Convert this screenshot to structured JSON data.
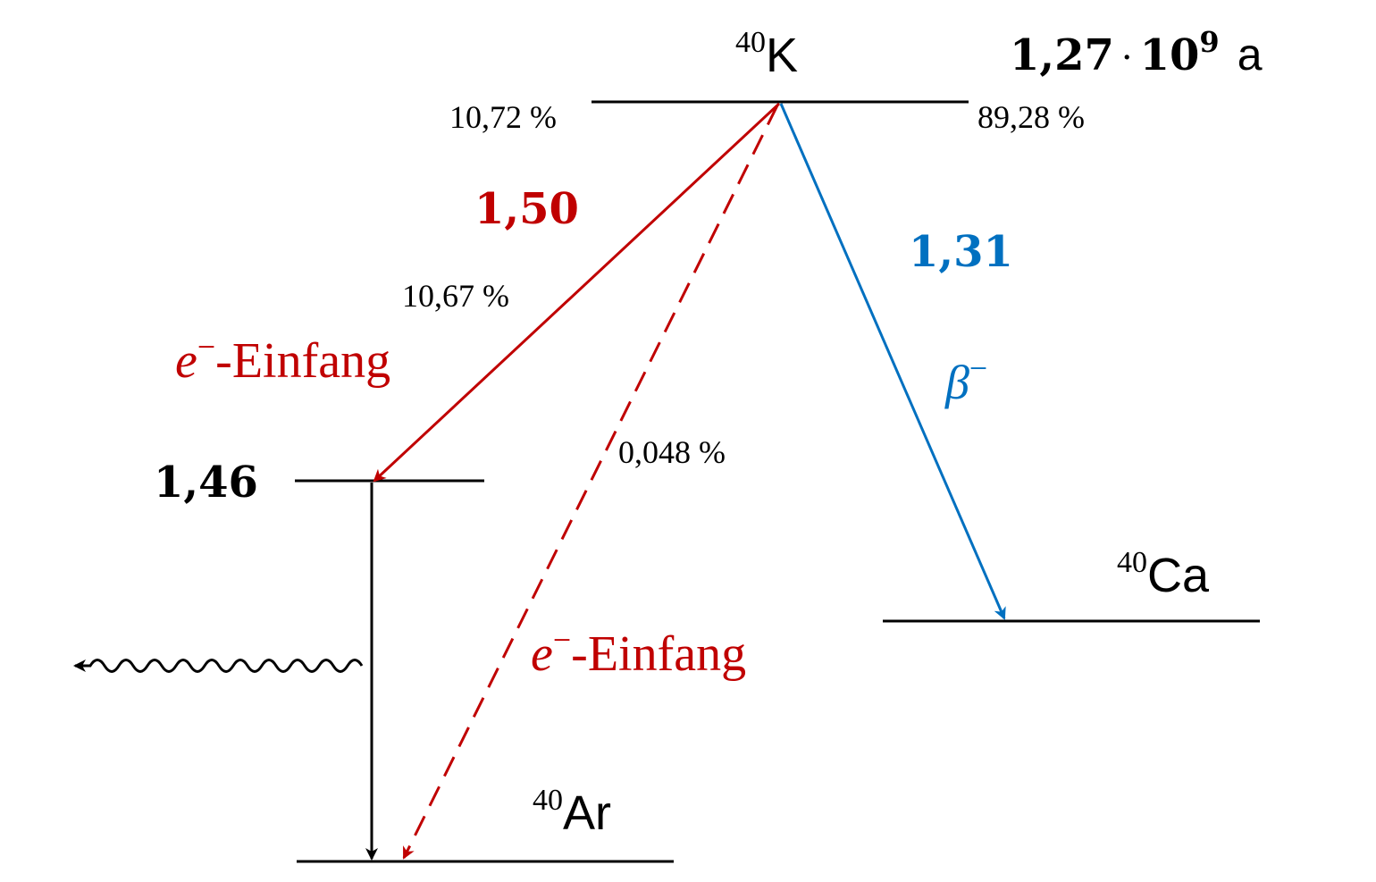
{
  "colors": {
    "black": "#000000",
    "red": "#c00000",
    "blue": "#0070c0"
  },
  "nuclides": {
    "k": {
      "mass": "40",
      "symbol": "K"
    },
    "ca": {
      "mass": "40",
      "symbol": "Ca"
    },
    "ar": {
      "mass": "40",
      "symbol": "Ar"
    }
  },
  "half_life": {
    "mantissa": "1,27",
    "dot": "·",
    "base": "10",
    "exponent": "9",
    "unit": "a"
  },
  "branching": {
    "left": "10,72 %",
    "right": "89,28 %",
    "ec_excited": "10,67 %",
    "ec_ground": "0,048 %"
  },
  "energies": {
    "ec_excited": "1,50",
    "beta": "1,31",
    "excited_level": "1,46"
  },
  "labels": {
    "ec_upper": {
      "e": "e",
      "sup": "−",
      "rest": "-Einfang"
    },
    "ec_lower": {
      "e": "e",
      "sup": "−",
      "rest": "-Einfang"
    },
    "beta": {
      "symbol": "β",
      "sup": "−"
    }
  }
}
